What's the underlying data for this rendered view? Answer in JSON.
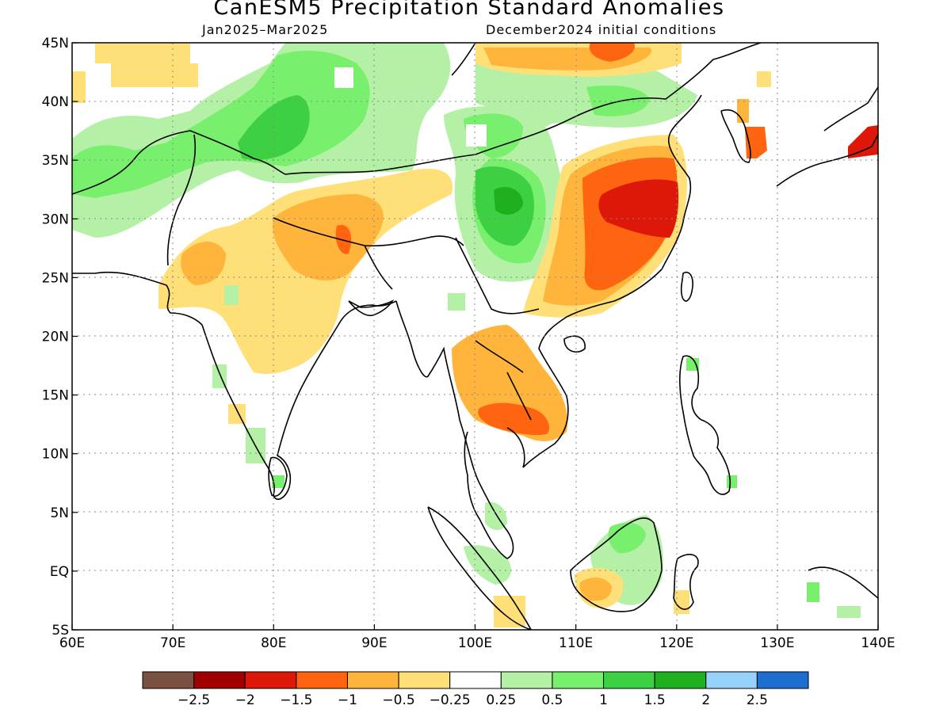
{
  "title": "CanESM5 Precipitation Standard Anomalies",
  "subtitle_left": "Jan2025–Mar2025",
  "subtitle_right": "December2024 initial conditions",
  "map": {
    "lon_range": [
      60,
      140
    ],
    "lat_range": [
      -5,
      45
    ],
    "x_ticks": [
      {
        "lon": 60,
        "label": "60E"
      },
      {
        "lon": 70,
        "label": "70E"
      },
      {
        "lon": 80,
        "label": "80E"
      },
      {
        "lon": 90,
        "label": "90E"
      },
      {
        "lon": 100,
        "label": "100E"
      },
      {
        "lon": 110,
        "label": "110E"
      },
      {
        "lon": 120,
        "label": "120E"
      },
      {
        "lon": 130,
        "label": "130E"
      },
      {
        "lon": 140,
        "label": "140E"
      }
    ],
    "y_ticks": [
      {
        "lat": 45,
        "label": "45N"
      },
      {
        "lat": 40,
        "label": "40N"
      },
      {
        "lat": 35,
        "label": "35N"
      },
      {
        "lat": 30,
        "label": "30N"
      },
      {
        "lat": 25,
        "label": "25N"
      },
      {
        "lat": 20,
        "label": "20N"
      },
      {
        "lat": 15,
        "label": "15N"
      },
      {
        "lat": 10,
        "label": "10N"
      },
      {
        "lat": 5,
        "label": "5N"
      },
      {
        "lat": 0,
        "label": "EQ"
      },
      {
        "lat": -5,
        "label": "5S"
      }
    ],
    "grid": "dotted"
  },
  "legend": {
    "colors": [
      "#7a5043",
      "#a00000",
      "#dd1808",
      "#ff6410",
      "#ffb43c",
      "#ffe078",
      "#ffffff",
      "#b4f0a6",
      "#78f06e",
      "#3cd042",
      "#1eb01e",
      "#96d2fa",
      "#1e6ed2"
    ],
    "labels": [
      "−2.5",
      "−2",
      "−1.5",
      "−1",
      "−0.5",
      "−0.25",
      "0.25",
      "0.5",
      "1",
      "1.5",
      "2",
      "2.5"
    ]
  }
}
